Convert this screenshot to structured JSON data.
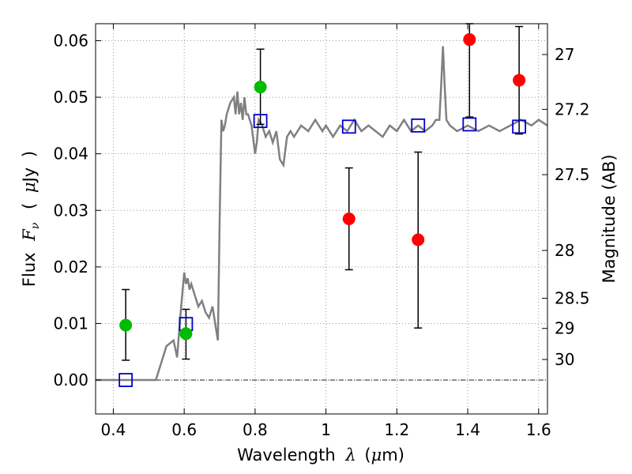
{
  "chart_data": {
    "type": "scatter",
    "title": "",
    "xlabel": {
      "prefix": "Wavelength",
      "symbol": "λ",
      "unit_open": "(",
      "unit_mu": "μ",
      "unit_rest": "m)"
    },
    "ylabel": {
      "prefix": "Flux",
      "symbol": "F",
      "symbol_sub": "ν",
      "unit_open": "(",
      "unit_mu": "μ",
      "unit_rest": "Jy",
      "unit_close": ")"
    },
    "y2label": "Magnitude (AB)",
    "xlim": [
      0.35,
      1.625
    ],
    "ylim": [
      -0.006,
      0.063
    ],
    "grid": true,
    "x_ticks": [
      {
        "value": 0.4,
        "label": "0.4"
      },
      {
        "value": 0.6,
        "label": "0.6"
      },
      {
        "value": 0.8,
        "label": "0.8"
      },
      {
        "value": 1.0,
        "label": "1"
      },
      {
        "value": 1.2,
        "label": "1.2"
      },
      {
        "value": 1.4,
        "label": "1.4"
      },
      {
        "value": 1.6,
        "label": "1.6"
      }
    ],
    "y_ticks": [
      {
        "value": 0.0,
        "label": "0.00"
      },
      {
        "value": 0.01,
        "label": "0.01"
      },
      {
        "value": 0.02,
        "label": "0.02"
      },
      {
        "value": 0.03,
        "label": "0.03"
      },
      {
        "value": 0.04,
        "label": "0.04"
      },
      {
        "value": 0.05,
        "label": "0.05"
      },
      {
        "value": 0.06,
        "label": "0.06"
      }
    ],
    "y2_ticks": [
      {
        "value": 27,
        "label": "27"
      },
      {
        "value": 27.2,
        "label": "27.2"
      },
      {
        "value": 27.5,
        "label": "27.5"
      },
      {
        "value": 28,
        "label": "28"
      },
      {
        "value": 28.5,
        "label": "28.5"
      },
      {
        "value": 29,
        "label": "29"
      },
      {
        "value": 30,
        "label": "30"
      }
    ],
    "colors": {
      "template": "#808080",
      "detections": "#00bb00",
      "measurements": "#ff0000",
      "model_photometry": "#0000cc",
      "errorbar": "#000000",
      "grid": "#9a9a9a"
    },
    "template_spectrum": {
      "x": [
        0.35,
        0.52,
        0.55,
        0.57,
        0.58,
        0.59,
        0.6,
        0.605,
        0.61,
        0.615,
        0.62,
        0.63,
        0.64,
        0.65,
        0.66,
        0.67,
        0.68,
        0.69,
        0.695,
        0.7,
        0.705,
        0.71,
        0.715,
        0.72,
        0.73,
        0.74,
        0.745,
        0.75,
        0.755,
        0.76,
        0.765,
        0.77,
        0.775,
        0.78,
        0.785,
        0.79,
        0.8,
        0.805,
        0.81,
        0.82,
        0.83,
        0.84,
        0.85,
        0.86,
        0.87,
        0.88,
        0.89,
        0.9,
        0.91,
        0.92,
        0.93,
        0.95,
        0.97,
        0.99,
        1.0,
        1.02,
        1.04,
        1.06,
        1.08,
        1.1,
        1.12,
        1.14,
        1.16,
        1.18,
        1.2,
        1.22,
        1.24,
        1.26,
        1.28,
        1.3,
        1.31,
        1.32,
        1.325,
        1.33,
        1.335,
        1.34,
        1.35,
        1.37,
        1.4,
        1.43,
        1.46,
        1.49,
        1.52,
        1.55,
        1.58,
        1.6,
        1.625
      ],
      "y": [
        0.0,
        0.0,
        0.006,
        0.007,
        0.004,
        0.012,
        0.019,
        0.017,
        0.018,
        0.016,
        0.017,
        0.015,
        0.013,
        0.014,
        0.012,
        0.011,
        0.013,
        0.009,
        0.007,
        0.028,
        0.046,
        0.044,
        0.045,
        0.047,
        0.049,
        0.05,
        0.047,
        0.051,
        0.047,
        0.049,
        0.046,
        0.05,
        0.047,
        0.047,
        0.046,
        0.045,
        0.04,
        0.042,
        0.046,
        0.045,
        0.043,
        0.044,
        0.042,
        0.044,
        0.039,
        0.038,
        0.043,
        0.044,
        0.043,
        0.044,
        0.045,
        0.044,
        0.046,
        0.044,
        0.045,
        0.043,
        0.045,
        0.044,
        0.046,
        0.044,
        0.045,
        0.044,
        0.043,
        0.045,
        0.044,
        0.046,
        0.044,
        0.045,
        0.044,
        0.045,
        0.046,
        0.046,
        0.052,
        0.059,
        0.052,
        0.046,
        0.045,
        0.044,
        0.045,
        0.044,
        0.045,
        0.044,
        0.045,
        0.046,
        0.045,
        0.046,
        0.045
      ]
    },
    "series": [
      {
        "points": [
          {
            "x": 0.435,
            "y": 0.0097,
            "yerr_low": 0.0035,
            "yerr_high": 0.016
          },
          {
            "x": 0.605,
            "y": 0.0082,
            "yerr_low": 0.0037,
            "yerr_high": 0.0125
          },
          {
            "x": 0.815,
            "y": 0.0518,
            "yerr_low": 0.0452,
            "yerr_high": 0.0585
          }
        ]
      },
      {
        "points": [
          {
            "x": 1.065,
            "y": 0.0285,
            "yerr_low": 0.0195,
            "yerr_high": 0.0375
          },
          {
            "x": 1.26,
            "y": 0.0248,
            "yerr_low": 0.0092,
            "yerr_high": 0.0403
          },
          {
            "x": 1.405,
            "y": 0.0602,
            "yerr_low": 0.0465,
            "yerr_high": 0.063
          },
          {
            "x": 1.545,
            "y": 0.053,
            "yerr_low": 0.0435,
            "yerr_high": 0.0625
          }
        ]
      },
      {
        "points": [
          {
            "x": 0.435,
            "y": 0.0
          },
          {
            "x": 0.605,
            "y": 0.0099
          },
          {
            "x": 0.815,
            "y": 0.0458
          },
          {
            "x": 1.065,
            "y": 0.0448
          },
          {
            "x": 1.26,
            "y": 0.045
          },
          {
            "x": 1.405,
            "y": 0.0452
          },
          {
            "x": 1.545,
            "y": 0.0448
          }
        ]
      }
    ]
  }
}
